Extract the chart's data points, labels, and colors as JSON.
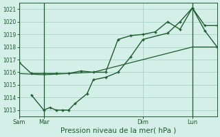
{
  "xlabel": "Pression niveau de la mer( hPa )",
  "ylim": [
    1012.5,
    1021.5
  ],
  "yticks": [
    1013,
    1014,
    1015,
    1016,
    1017,
    1018,
    1019,
    1020,
    1021
  ],
  "bg_color": "#d4eee8",
  "grid_color": "#9ecfc4",
  "line_color": "#1a5c2a",
  "figsize": [
    3.2,
    2.0
  ],
  "dpi": 100,
  "xlim": [
    0,
    96
  ],
  "xtick_positions": [
    0,
    12,
    60,
    84
  ],
  "xtick_labels": [
    "Sam",
    "Mar",
    "Dim",
    "Lun"
  ],
  "vline_positions": [
    0,
    12,
    84
  ],
  "line1_x": [
    0,
    6,
    12,
    18,
    24,
    30,
    36,
    42,
    48,
    54,
    60,
    66,
    72,
    78,
    84,
    90,
    96
  ],
  "line1_y": [
    1016.8,
    1015.9,
    1015.9,
    1015.9,
    1015.9,
    1016.1,
    1016.0,
    1016.0,
    1018.6,
    1018.9,
    1019.0,
    1019.2,
    1020.0,
    1019.4,
    1021.1,
    1019.7,
    1019.7
  ],
  "line2_x": [
    6,
    12,
    15,
    18,
    21,
    24,
    27,
    33,
    36,
    42,
    48,
    54,
    60,
    72,
    78,
    84,
    90,
    96
  ],
  "line2_y": [
    1014.2,
    1013.0,
    1013.2,
    1013.0,
    1013.0,
    1013.0,
    1013.5,
    1014.3,
    1015.4,
    1015.6,
    1016.0,
    1017.2,
    1018.6,
    1019.1,
    1020.0,
    1021.1,
    1019.3,
    1018.0
  ],
  "line3_x": [
    0,
    12,
    24,
    36,
    48,
    60,
    72,
    84,
    96
  ],
  "line3_y": [
    1015.9,
    1015.8,
    1015.9,
    1016.0,
    1016.5,
    1017.0,
    1017.5,
    1018.0,
    1018.0
  ]
}
